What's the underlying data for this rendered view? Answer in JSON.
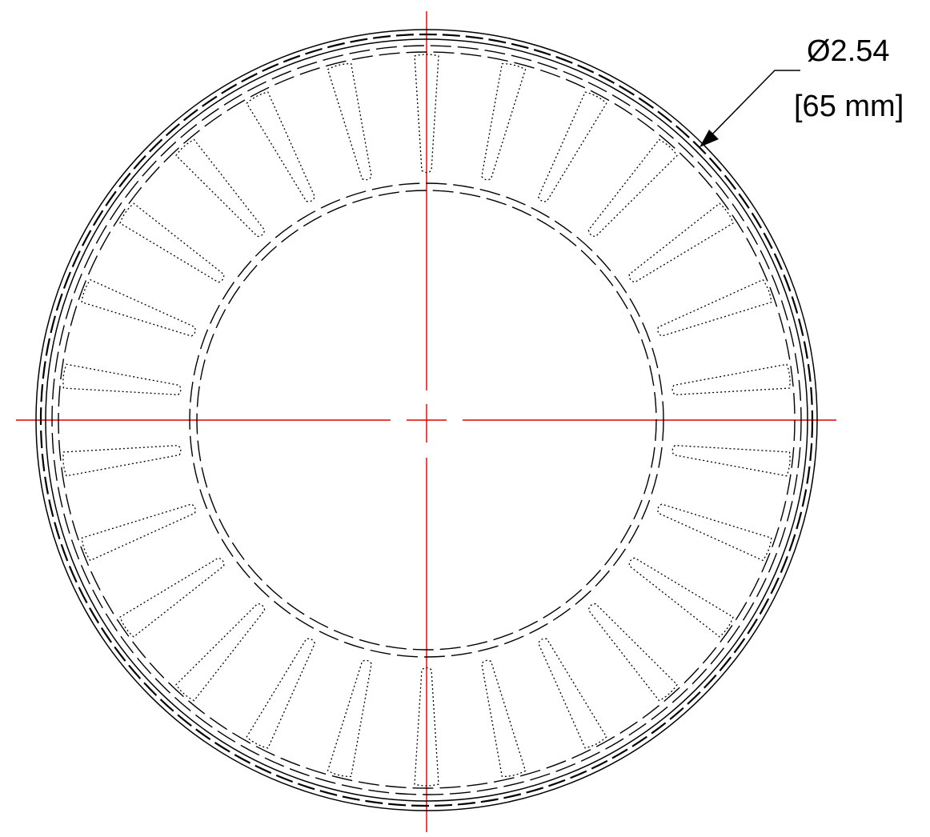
{
  "dimension": {
    "diameter_label": "Ø2.54",
    "metric_label": "[65 mm]"
  },
  "drawing": {
    "slot_count": 26,
    "centerline_color": "#e00000",
    "line_color": "#000000"
  }
}
